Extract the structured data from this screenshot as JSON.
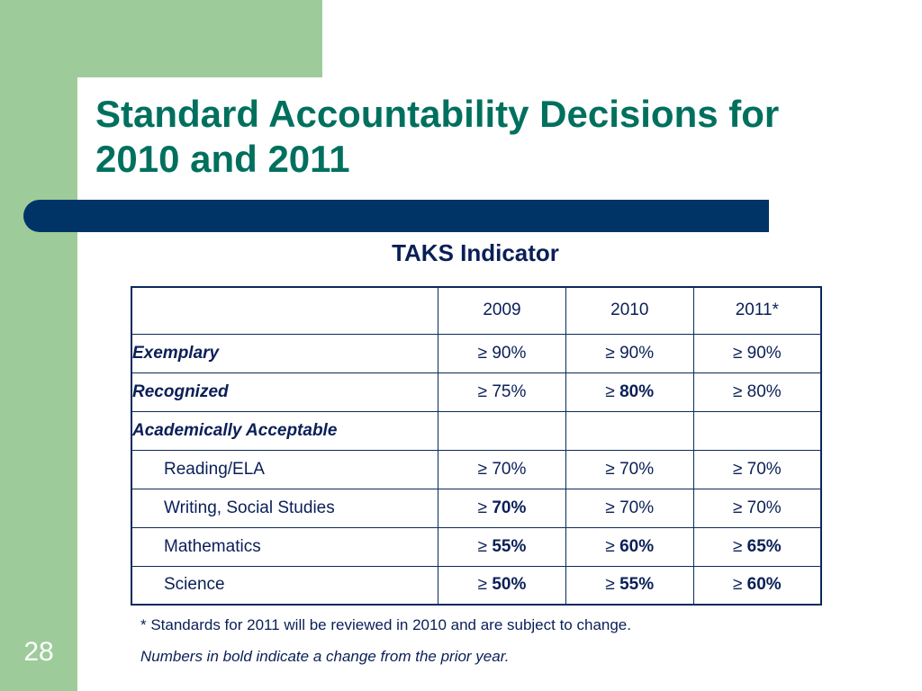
{
  "slide": {
    "title_line1": "Standard Accountability Decisions for",
    "title_line2": "2010 and 2011",
    "subtitle": "TAKS Indicator",
    "page_number": "28",
    "colors": {
      "green_frame": "#9dcc9a",
      "title": "#00705e",
      "bar": "#003466",
      "text": "#0a1f57"
    }
  },
  "table": {
    "headers": [
      "",
      "2009",
      "2010",
      "2011*"
    ],
    "rows": [
      {
        "label": "Exemplary",
        "style": "level",
        "cells": [
          {
            "sym": "≥ ",
            "num": "90%",
            "bold": false
          },
          {
            "sym": "≥ ",
            "num": "90%",
            "bold": false
          },
          {
            "sym": "≥ ",
            "num": "90%",
            "bold": false
          }
        ]
      },
      {
        "label": "Recognized",
        "style": "level",
        "cells": [
          {
            "sym": "≥ ",
            "num": "75%",
            "bold": false
          },
          {
            "sym": "≥ ",
            "num": "80%",
            "bold": true
          },
          {
            "sym": "≥ ",
            "num": "80%",
            "bold": false
          }
        ]
      },
      {
        "label": "Academically Acceptable",
        "style": "level",
        "cells": [
          {
            "sym": "",
            "num": "",
            "bold": false
          },
          {
            "sym": "",
            "num": "",
            "bold": false
          },
          {
            "sym": "",
            "num": "",
            "bold": false
          }
        ]
      },
      {
        "label": "Reading/ELA",
        "style": "sub",
        "cells": [
          {
            "sym": "≥ ",
            "num": "70%",
            "bold": false
          },
          {
            "sym": "≥ ",
            "num": "70%",
            "bold": false
          },
          {
            "sym": "≥ ",
            "num": "70%",
            "bold": false
          }
        ]
      },
      {
        "label": "Writing, Social Studies",
        "style": "sub",
        "cells": [
          {
            "sym": "≥ ",
            "num": "70%",
            "bold": true
          },
          {
            "sym": "≥ ",
            "num": "70%",
            "bold": false
          },
          {
            "sym": "≥ ",
            "num": "70%",
            "bold": false
          }
        ]
      },
      {
        "label": "Mathematics",
        "style": "sub",
        "cells": [
          {
            "sym": "≥ ",
            "num": "55%",
            "bold": true
          },
          {
            "sym": "≥ ",
            "num": "60%",
            "bold": true
          },
          {
            "sym": "≥ ",
            "num": "65%",
            "bold": true
          }
        ]
      },
      {
        "label": "Science",
        "style": "sub",
        "cells": [
          {
            "sym": "≥ ",
            "num": "50%",
            "bold": true
          },
          {
            "sym": "≥ ",
            "num": "55%",
            "bold": true
          },
          {
            "sym": "≥ ",
            "num": "60%",
            "bold": true
          }
        ]
      }
    ]
  },
  "footnotes": {
    "note1": "* Standards for 2011 will be reviewed in 2010 and are subject to change.",
    "note2": "Numbers in bold indicate a change from the prior year."
  }
}
